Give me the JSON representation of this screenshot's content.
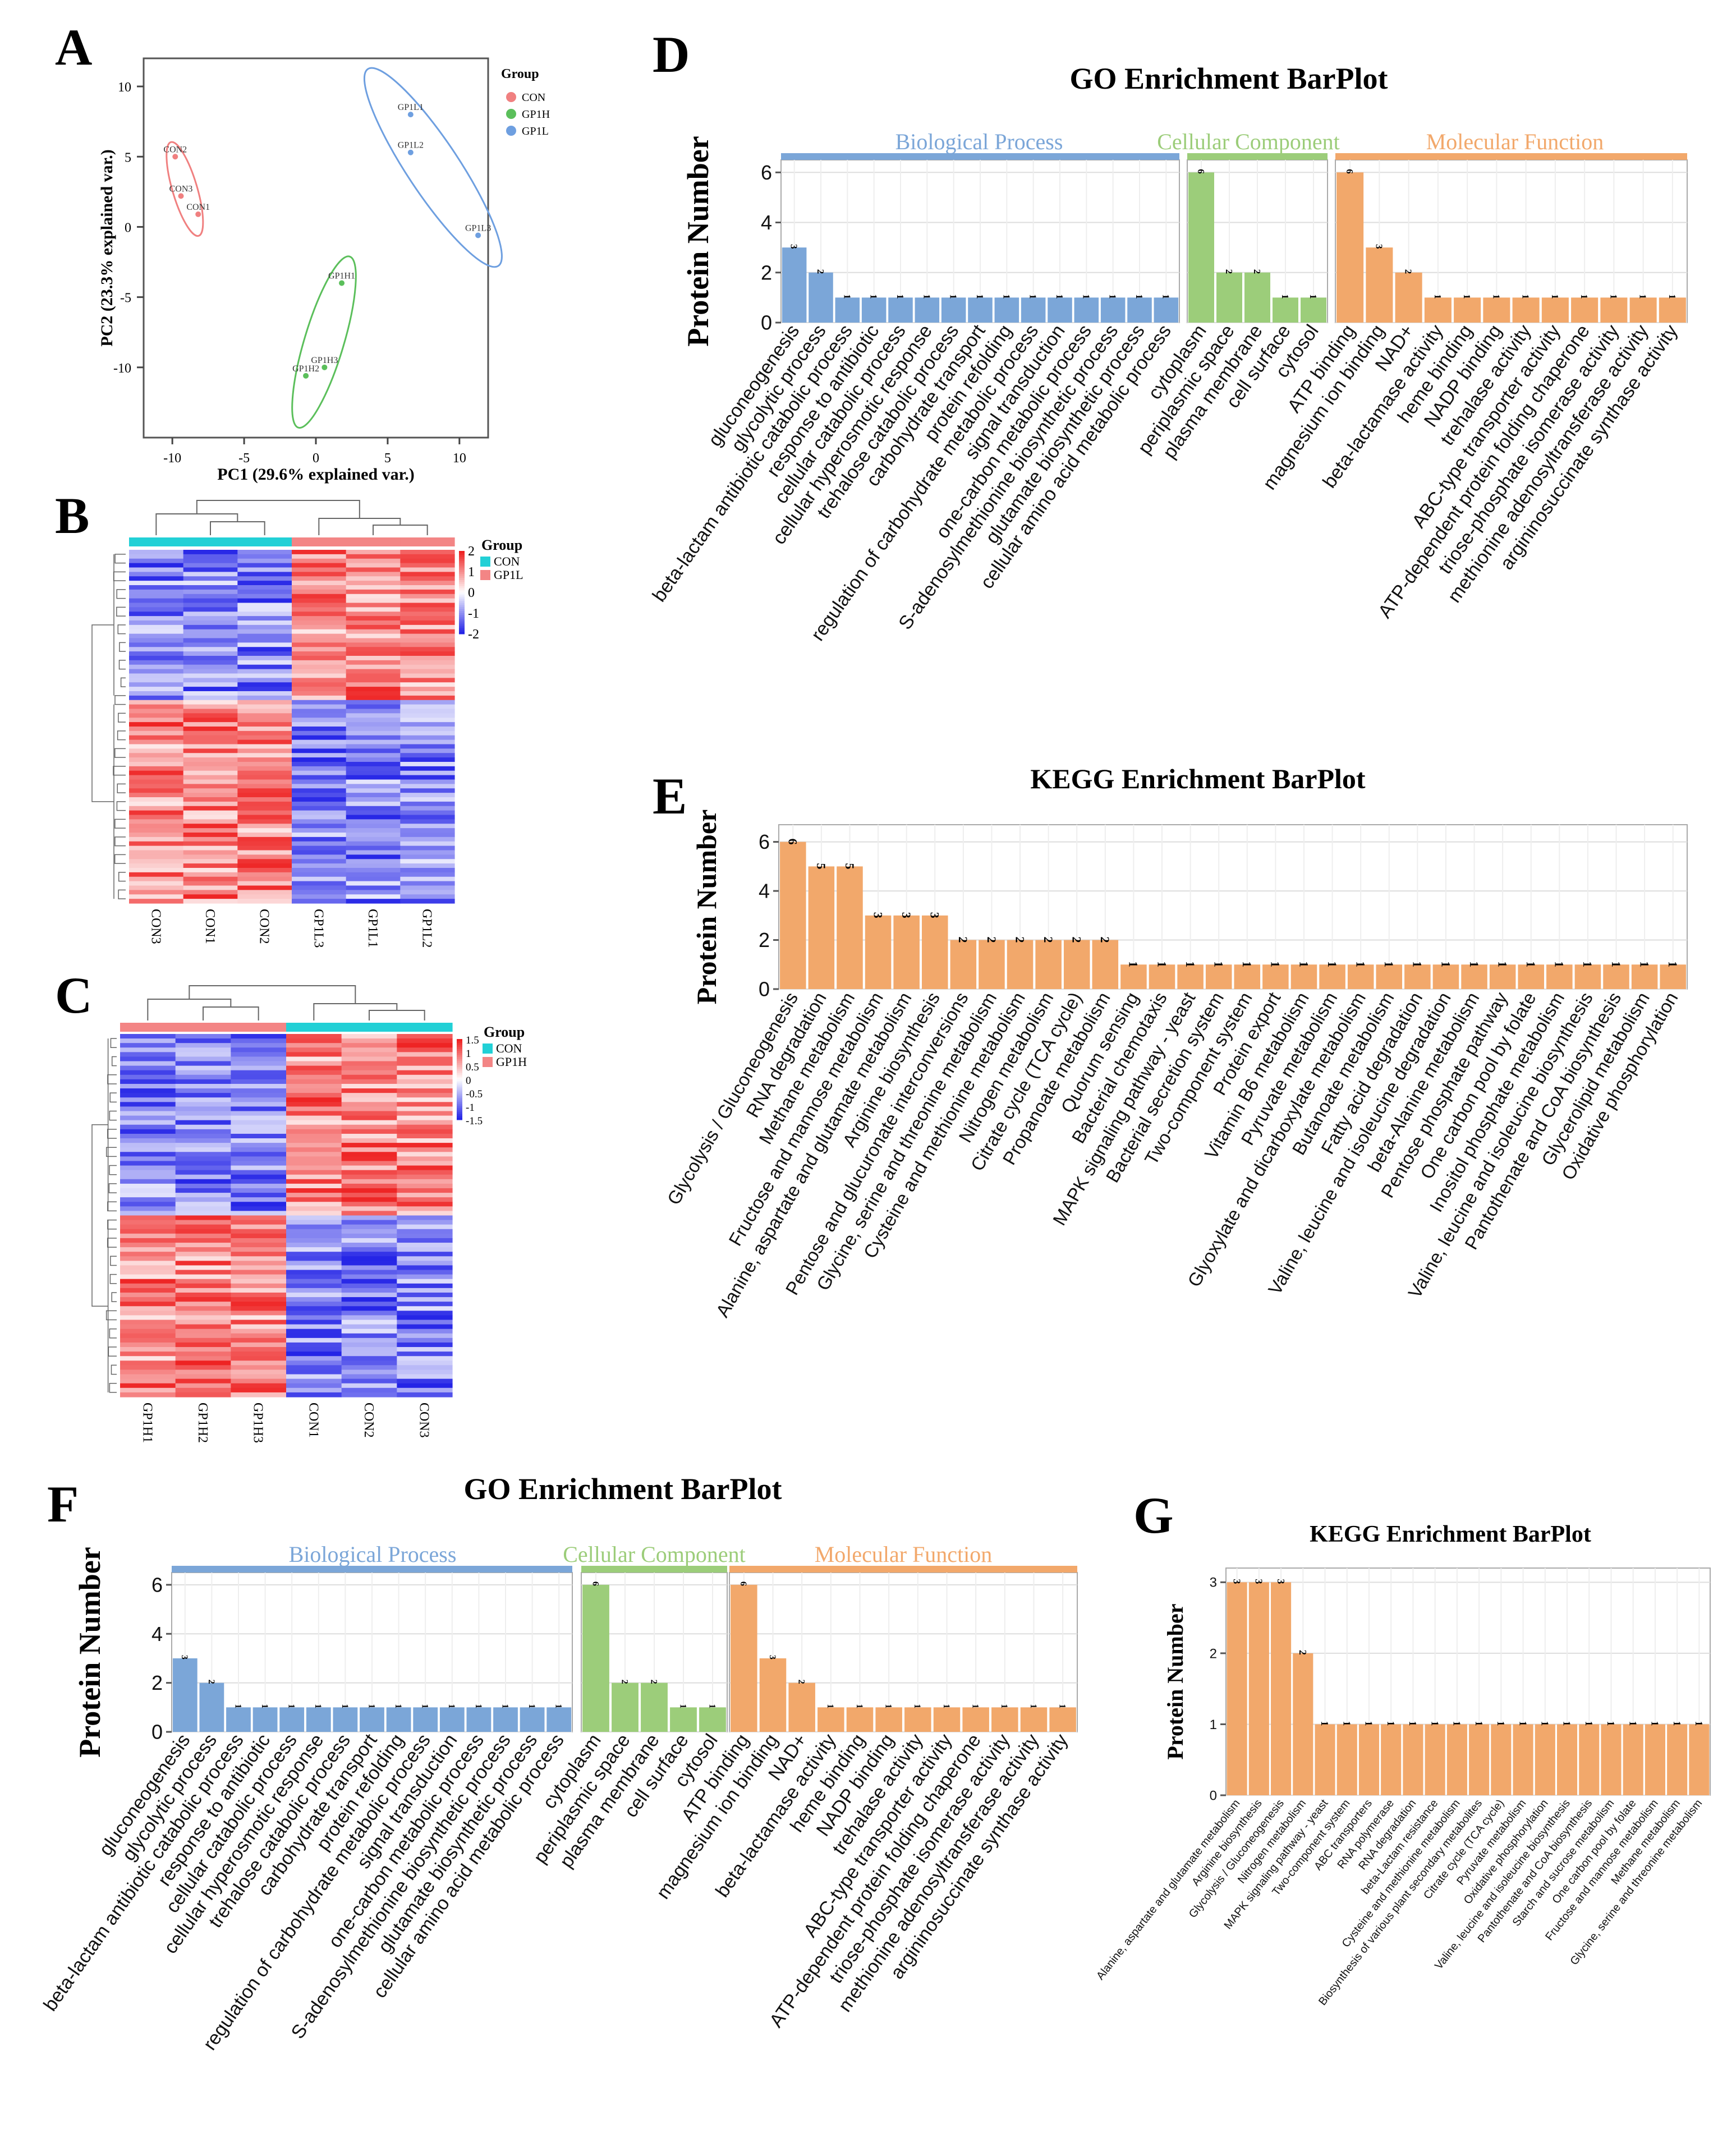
{
  "panel_letters": [
    "A",
    "B",
    "C",
    "D",
    "E",
    "F",
    "G"
  ],
  "colors": {
    "con": "#f08080",
    "gp1h": "#5bbf5b",
    "gp1l": "#6e9fe0",
    "bp": "#7ba6d8",
    "cc": "#9ccd7a",
    "mf": "#f2a86b",
    "heat_hi": "#ee2222",
    "heat_mid": "#ffffff",
    "heat_lo": "#2424e6",
    "group_con": "#22d0d6",
    "group_trt": "#f38585",
    "grid": "#dddddd"
  },
  "pca": {
    "panel": "A",
    "xlabel": "PC1 (29.6% explained var.)",
    "ylabel": "PC2 (23.3% explained var.)",
    "xlim": [
      -12,
      12
    ],
    "ylim": [
      -15,
      12
    ],
    "xticks": [
      -10,
      -5,
      0,
      5,
      10
    ],
    "yticks": [
      -10,
      -5,
      0,
      5,
      10
    ],
    "legend_title": "Group",
    "groups": [
      {
        "name": "CON",
        "color": "#f08080",
        "points": [
          {
            "label": "CON2",
            "x": -9.8,
            "y": 5.0
          },
          {
            "label": "CON3",
            "x": -9.4,
            "y": 2.2
          },
          {
            "label": "CON1",
            "x": -8.2,
            "y": 0.9
          }
        ]
      },
      {
        "name": "GP1H",
        "color": "#5bbf5b",
        "points": [
          {
            "label": "GP1H1",
            "x": 1.8,
            "y": -4.0
          },
          {
            "label": "GP1H3",
            "x": 0.6,
            "y": -10.0
          },
          {
            "label": "GP1H2",
            "x": -0.7,
            "y": -10.6
          }
        ]
      },
      {
        "name": "GP1L",
        "color": "#6e9fe0",
        "points": [
          {
            "label": "GP1L1",
            "x": 6.6,
            "y": 8.0
          },
          {
            "label": "GP1L2",
            "x": 6.6,
            "y": 5.3
          },
          {
            "label": "GP1L3",
            "x": 11.3,
            "y": -0.6
          }
        ]
      }
    ]
  },
  "heatmap_b": {
    "panel": "B",
    "columns": [
      "CON3",
      "CON1",
      "CON2",
      "GP1L3",
      "GP1L1",
      "GP1L2"
    ],
    "legend_title": "Group",
    "scale_ticks": [
      "2",
      "1",
      "0",
      "-1",
      "-2"
    ],
    "groups": [
      {
        "name": "CON",
        "color": "#22d0d6"
      },
      {
        "name": "GP1L",
        "color": "#f38585"
      }
    ]
  },
  "heatmap_c": {
    "panel": "C",
    "columns": [
      "GP1H1",
      "GP1H2",
      "GP1H3",
      "CON1",
      "CON2",
      "CON3"
    ],
    "legend_title": "Group",
    "scale_ticks": [
      "1.5",
      "1",
      "0.5",
      "0",
      "-0.5",
      "-1",
      "-1.5"
    ],
    "groups": [
      {
        "name": "CON",
        "color": "#22d0d6"
      },
      {
        "name": "GP1H",
        "color": "#f38585"
      }
    ]
  },
  "chart_data": [
    {
      "panel": "D",
      "type": "bar",
      "title": "GO Enrichment BarPlot",
      "ylabel": "Protein Number",
      "ylim": [
        0,
        6.5
      ],
      "yticks": [
        0,
        2,
        4,
        6
      ],
      "facets": [
        {
          "name": "Biological Process",
          "color": "#7ba6d8",
          "categories": [
            "gluconeogenesis",
            "glycolytic process",
            "beta-lactam antibiotic catabolic process",
            "response to antibiotic",
            "cellular catabolic process",
            "cellular hyperosmotic response",
            "trehalose catabolic process",
            "carbohydrate transport",
            "protein refolding",
            "regulation of carbohydrate metabolic process",
            "signal transduction",
            "one-carbon metabolic process",
            "S-adenosylmethionine biosynthetic process",
            "glutamate biosynthetic process",
            "cellular amino acid metabolic process"
          ],
          "values": [
            3,
            2,
            1,
            1,
            1,
            1,
            1,
            1,
            1,
            1,
            1,
            1,
            1,
            1,
            1
          ]
        },
        {
          "name": "Cellular Component",
          "color": "#9ccd7a",
          "categories": [
            "cytoplasm",
            "periplasmic space",
            "plasma membrane",
            "cell surface",
            "cytosol"
          ],
          "values": [
            6,
            2,
            2,
            1,
            1
          ]
        },
        {
          "name": "Molecular Function",
          "color": "#f2a86b",
          "categories": [
            "ATP binding",
            "magnesium ion binding",
            "NAD+",
            "beta-lactamase activity",
            "heme binding",
            "NADP binding",
            "trehalase activity",
            "ABC-type transporter activity",
            "ATP-dependent protein folding chaperone",
            "triose-phosphate isomerase activity",
            "methionine adenosyltransferase activity",
            "argininosuccinate synthase activity"
          ],
          "values": [
            6,
            3,
            2,
            1,
            1,
            1,
            1,
            1,
            1,
            1,
            1,
            1
          ]
        }
      ]
    },
    {
      "panel": "E",
      "type": "bar",
      "title": "KEGG Enrichment BarPlot",
      "ylabel": "Protein Number",
      "ylim": [
        0,
        6.7
      ],
      "yticks": [
        0,
        2,
        4,
        6
      ],
      "color": "#f2a86b",
      "categories": [
        "Glycolysis / Gluconeogenesis",
        "RNA degradation",
        "Methane metabolism",
        "Fructose and mannose metabolism",
        "Alanine, aspartate and glutamate metabolism",
        "Arginine biosynthesis",
        "Pentose and glucuronate interconversions",
        "Glycine, serine and threonine metabolism",
        "Cysteine and methionine metabolism",
        "Nitrogen metabolism",
        "Citrate cycle (TCA cycle)",
        "Propanoate metabolism",
        "Quorum sensing",
        "Bacterial chemotaxis",
        "MAPK signaling pathway - yeast",
        "Bacterial secretion system",
        "Two-component system",
        "Protein export",
        "Vitamin B6 metabolism",
        "Pyruvate metabolism",
        "Glyoxylate and dicarboxylate metabolism",
        "Butanoate metabolism",
        "Fatty acid degradation",
        "Valine, leucine and isoleucine degradation",
        "beta-Alanine metabolism",
        "Pentose phosphate pathway",
        "One carbon pool by folate",
        "Inositol phosphate metabolism",
        "Valine, leucine and isoleucine biosynthesis",
        "Pantothenate and CoA biosynthesis",
        "Glycerolipid metabolism",
        "Oxidative phosphorylation"
      ],
      "values": [
        6,
        5,
        5,
        3,
        3,
        3,
        2,
        2,
        2,
        2,
        2,
        2,
        1,
        1,
        1,
        1,
        1,
        1,
        1,
        1,
        1,
        1,
        1,
        1,
        1,
        1,
        1,
        1,
        1,
        1,
        1,
        1
      ]
    },
    {
      "panel": "F",
      "type": "bar",
      "title": "GO Enrichment BarPlot",
      "ylabel": "Protein Number",
      "ylim": [
        0,
        6.5
      ],
      "yticks": [
        0,
        2,
        4,
        6
      ],
      "facets": [
        {
          "name": "Biological Process",
          "color": "#7ba6d8",
          "categories": [
            "gluconeogenesis",
            "glycolytic process",
            "beta-lactam antibiotic catabolic process",
            "response to antibiotic",
            "cellular catabolic process",
            "cellular hyperosmotic response",
            "trehalose catabolic process",
            "carbohydrate transport",
            "protein refolding",
            "regulation of carbohydrate metabolic process",
            "signal transduction",
            "one-carbon metabolic process",
            "S-adenosylmethionine biosynthetic process",
            "glutamate biosynthetic process",
            "cellular amino acid metabolic process"
          ],
          "values": [
            3,
            2,
            1,
            1,
            1,
            1,
            1,
            1,
            1,
            1,
            1,
            1,
            1,
            1,
            1
          ]
        },
        {
          "name": "Cellular Component",
          "color": "#9ccd7a",
          "categories": [
            "cytoplasm",
            "periplasmic space",
            "plasma membrane",
            "cell surface",
            "cytosol"
          ],
          "values": [
            6,
            2,
            2,
            1,
            1
          ]
        },
        {
          "name": "Molecular Function",
          "color": "#f2a86b",
          "categories": [
            "ATP binding",
            "magnesium ion binding",
            "NAD+",
            "beta-lactamase activity",
            "heme binding",
            "NADP binding",
            "trehalase activity",
            "ABC-type transporter activity",
            "ATP-dependent protein folding chaperone",
            "triose-phosphate isomerase activity",
            "methionine adenosyltransferase activity",
            "argininosuccinate synthase activity"
          ],
          "values": [
            6,
            3,
            2,
            1,
            1,
            1,
            1,
            1,
            1,
            1,
            1,
            1
          ]
        }
      ]
    },
    {
      "panel": "G",
      "type": "bar",
      "title": "KEGG Enrichment BarPlot",
      "ylabel": "Protein Number",
      "ylim": [
        0,
        3.2
      ],
      "yticks": [
        0,
        1,
        2,
        3
      ],
      "color": "#f2a86b",
      "categories": [
        "Alanine, aspartate and glutamate metabolism",
        "Arginine biosynthesis",
        "Glycolysis / Gluconeogenesis",
        "Nitrogen metabolism",
        "MAPK signaling pathway - yeast",
        "Two-component system",
        "ABC transporters",
        "RNA polymerase",
        "RNA degradation",
        "beta-Lactam resistance",
        "Cysteine and methionine metabolism",
        "Biosynthesis of various plant secondary metabolites",
        "Citrate cycle (TCA cycle)",
        "Pyruvate metabolism",
        "Oxidative phosphorylation",
        "Valine, leucine and isoleucine biosynthesis",
        "Pantothenate and CoA biosynthesis",
        "Starch and sucrose metabolism",
        "One carbon pool by folate",
        "Fructose and mannose metabolism",
        "Methane metabolism",
        "Glycine, serine and threonine metabolism"
      ],
      "values": [
        3,
        3,
        3,
        2,
        1,
        1,
        1,
        1,
        1,
        1,
        1,
        1,
        1,
        1,
        1,
        1,
        1,
        1,
        1,
        1,
        1,
        1
      ]
    }
  ]
}
